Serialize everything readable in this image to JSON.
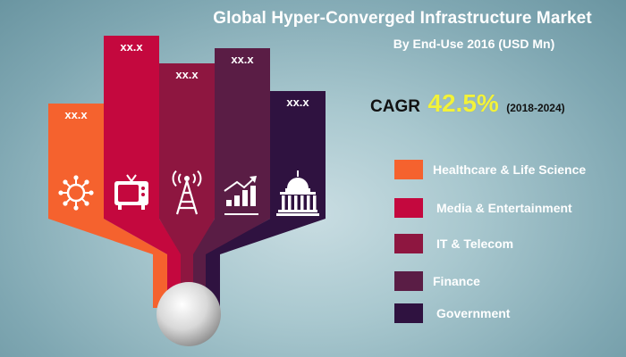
{
  "title": "Global Hyper-Converged Infrastructure Market",
  "subtitle": "By End-Use 2016 (USD Mn)",
  "cagr": {
    "label": "CAGR",
    "value": "42.5%",
    "period": "(2018-2024)"
  },
  "chart_data": {
    "type": "bar",
    "title": "Global Hyper-Converged Infrastructure Market",
    "subtitle": "By End-Use 2016 (USD Mn)",
    "categories": [
      "Healthcare & Life Science",
      "Media & Entertainment",
      "IT & Telecom",
      "Finance",
      "Government"
    ],
    "data_labels": [
      "xx.x",
      "xx.x",
      "xx.x",
      "xx.x",
      "xx.x"
    ],
    "relative_heights": [
      0.63,
      1.0,
      0.85,
      0.93,
      0.7
    ],
    "icons": [
      "virus-icon",
      "tv-icon",
      "antenna-tower-icon",
      "growth-chart-icon",
      "capitol-building-icon"
    ],
    "colors": [
      "#f5622e",
      "#c4083e",
      "#8e1640",
      "#5a1d45",
      "#2f1240"
    ],
    "legend_position": "right"
  },
  "legend": [
    {
      "label": "Healthcare & Life Science",
      "color": "#f5622e"
    },
    {
      "label": "Media & Entertainment",
      "color": "#c4083e"
    },
    {
      "label": "IT & Telecom",
      "color": "#8e1640"
    },
    {
      "label": "Finance",
      "color": "#5a1d45"
    },
    {
      "label": "Government",
      "color": "#2f1240"
    }
  ]
}
